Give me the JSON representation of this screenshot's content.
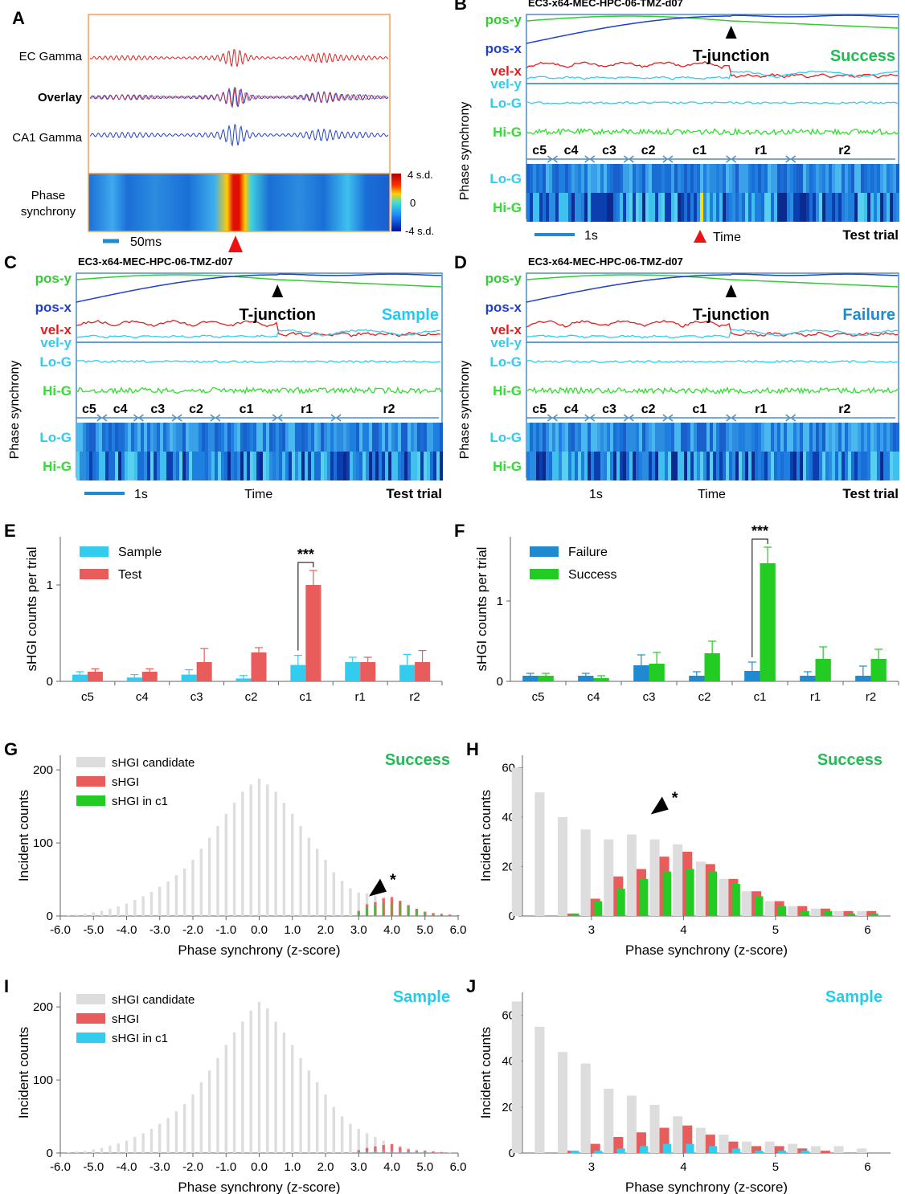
{
  "colors": {
    "pos_y": "#33cc33",
    "pos_x": "#1f3fd0",
    "vel_x": "#e02020",
    "vel_y": "#33ccee",
    "lo_g": "#33ccee",
    "hi_g": "#33dd33",
    "sample": "#33ccee",
    "test": "#e85c5c",
    "failure": "#1f8ad0",
    "success": "#22cc22",
    "candidate": "#dddddd",
    "shgi": "#e85c5c",
    "success_title": "#22bb55",
    "sample_title": "#22ccee",
    "frame": "#4d8fc0",
    "frame_a": "#f0a050"
  },
  "panelA": {
    "label": "A",
    "traces": [
      "EC Gamma",
      "Overlay",
      "CA1 Gamma"
    ],
    "phase_label_1": "Phase",
    "phase_label_2": "synchrony",
    "colorbar": [
      "4 s.d.",
      "0",
      "-4 s.d."
    ],
    "scalebar": "50ms"
  },
  "panelB": {
    "label": "B",
    "title": "EC3-x64-MEC-HPC-06-TMZ-d07",
    "rows": [
      "pos-y",
      "pos-x",
      "vel-x",
      "vel-y"
    ],
    "junction": "T-junction",
    "outcome": "Success",
    "ylabel": "Phase synchrony",
    "lo": "Lo-G",
    "hi": "Hi-G",
    "segments": [
      "c5",
      "c4",
      "c3",
      "c2",
      "c1",
      "r1",
      "r2"
    ],
    "scalebar": "1s",
    "time": "Time",
    "trial": "Test trial"
  },
  "panelC": {
    "label": "C",
    "title": "EC3-x64-MEC-HPC-06-TMZ-d07",
    "rows": [
      "pos-y",
      "pos-x",
      "vel-x",
      "vel-y"
    ],
    "junction": "T-junction",
    "outcome": "Sample",
    "ylabel": "Phase synchrony",
    "lo": "Lo-G",
    "hi": "Hi-G",
    "segments": [
      "c5",
      "c4",
      "c3",
      "c2",
      "c1",
      "r1",
      "r2"
    ],
    "scalebar": "1s",
    "time": "Time",
    "trial": "Test trial"
  },
  "panelD": {
    "label": "D",
    "title": "EC3-x64-MEC-HPC-06-TMZ-d07",
    "rows": [
      "pos-y",
      "pos-x",
      "vel-x",
      "vel-y"
    ],
    "junction": "T-junction",
    "outcome": "Failure",
    "ylabel": "Phase synchrony",
    "lo": "Lo-G",
    "hi": "Hi-G",
    "segments": [
      "c5",
      "c4",
      "c3",
      "c2",
      "c1",
      "r1",
      "r2"
    ],
    "scalebar": "1s",
    "time": "Time",
    "trial": "Test trial"
  },
  "chart_data": [
    {
      "id": "E",
      "type": "bar",
      "label": "E",
      "ylabel": "sHGI counts per trial",
      "categories": [
        "c5",
        "c4",
        "c3",
        "c2",
        "c1",
        "r1",
        "r2"
      ],
      "ylim": [
        0,
        1.5
      ],
      "yticks": [
        0,
        1
      ],
      "legend_position": "top-left",
      "significance": {
        "category": "c1",
        "text": "***"
      },
      "series": [
        {
          "name": "Sample",
          "values": [
            0.07,
            0.04,
            0.07,
            0.03,
            0.17,
            0.2,
            0.17
          ],
          "errors": [
            0.03,
            0.03,
            0.05,
            0.03,
            0.1,
            0.05,
            0.11
          ]
        },
        {
          "name": "Test",
          "values": [
            0.1,
            0.1,
            0.2,
            0.3,
            1.0,
            0.2,
            0.2
          ],
          "errors": [
            0.03,
            0.03,
            0.14,
            0.05,
            0.15,
            0.05,
            0.12
          ]
        }
      ]
    },
    {
      "id": "F",
      "type": "bar",
      "label": "F",
      "ylabel": "sHGI counts per trial",
      "categories": [
        "c5",
        "c4",
        "c3",
        "c2",
        "c1",
        "r1",
        "r2"
      ],
      "ylim": [
        0,
        1.8
      ],
      "yticks": [
        0,
        1
      ],
      "legend_position": "top-left",
      "significance": {
        "category": "c1",
        "text": "***"
      },
      "series": [
        {
          "name": "Failure",
          "values": [
            0.07,
            0.07,
            0.2,
            0.07,
            0.13,
            0.07,
            0.07
          ],
          "errors": [
            0.03,
            0.03,
            0.13,
            0.05,
            0.11,
            0.05,
            0.12
          ]
        },
        {
          "name": "Success",
          "values": [
            0.07,
            0.04,
            0.22,
            0.35,
            1.47,
            0.28,
            0.28
          ],
          "errors": [
            0.03,
            0.03,
            0.14,
            0.15,
            0.2,
            0.15,
            0.12
          ]
        }
      ]
    },
    {
      "id": "G",
      "type": "bar",
      "label": "G",
      "outcome": "Success",
      "xlabel": "Phase synchrony (z-score)",
      "ylabel": "Incident counts",
      "xlim": [
        -6.0,
        6.0
      ],
      "ylim": [
        0,
        220
      ],
      "yticks": [
        0,
        100,
        200
      ],
      "xticks": [
        "-6.0",
        "-5.0",
        "-4.0",
        "-3.0",
        "-2.0",
        "-1.0",
        "0.0",
        "1.0",
        "2.0",
        "3.0",
        "4.0",
        "5.0",
        "6.0"
      ],
      "annotation": "*",
      "bins": [
        -6,
        -5.75,
        -5.5,
        -5.25,
        -5,
        -4.75,
        -4.5,
        -4.25,
        -4,
        -3.75,
        -3.5,
        -3.25,
        -3,
        -2.75,
        -2.5,
        -2.25,
        -2,
        -1.75,
        -1.5,
        -1.25,
        -1,
        -0.75,
        -0.5,
        -0.25,
        0,
        0.25,
        0.5,
        0.75,
        1,
        1.25,
        1.5,
        1.75,
        2,
        2.25,
        2.5,
        2.75,
        3,
        3.25,
        3.5,
        3.75,
        4,
        4.25,
        4.5,
        4.75,
        5,
        5.25,
        5.5,
        5.75,
        6
      ],
      "series": [
        {
          "name": "sHGI candidate",
          "values": [
            0,
            1,
            2,
            3,
            5,
            7,
            10,
            13,
            17,
            22,
            27,
            33,
            40,
            47,
            56,
            65,
            77,
            92,
            107,
            123,
            140,
            155,
            170,
            180,
            188,
            180,
            170,
            155,
            140,
            123,
            107,
            92,
            77,
            60,
            48,
            38,
            32,
            31,
            28,
            26,
            22,
            17,
            13,
            9,
            6,
            4,
            2,
            1,
            0
          ]
        },
        {
          "name": "sHGI",
          "values": [
            0,
            0,
            0,
            0,
            0,
            0,
            0,
            0,
            0,
            0,
            0,
            0,
            0,
            0,
            0,
            0,
            0,
            0,
            0,
            0,
            0,
            0,
            0,
            0,
            0,
            0,
            0,
            0,
            0,
            0,
            0,
            0,
            0,
            0,
            0,
            0,
            7,
            16,
            19,
            24,
            26,
            21,
            15,
            10,
            6,
            4,
            3,
            2,
            1
          ]
        },
        {
          "name": "sHGI in c1",
          "values": [
            0,
            0,
            0,
            0,
            0,
            0,
            0,
            0,
            0,
            0,
            0,
            0,
            0,
            0,
            0,
            0,
            0,
            0,
            0,
            0,
            0,
            0,
            0,
            0,
            0,
            0,
            0,
            0,
            0,
            0,
            0,
            0,
            0,
            0,
            0,
            0,
            6,
            11,
            15,
            18,
            19,
            18,
            13,
            8,
            4,
            2,
            2,
            1,
            1
          ]
        }
      ]
    },
    {
      "id": "H",
      "type": "bar",
      "label": "H",
      "outcome": "Success",
      "xlabel": "Phase synchrony (z-score)",
      "ylabel": "Incident counts",
      "xlim": [
        2.25,
        6.25
      ],
      "ylim": [
        0,
        65
      ],
      "yticks": [
        0,
        20,
        40,
        60
      ],
      "xticks": [
        3,
        4,
        5,
        6
      ],
      "annotation": "*",
      "bins": [
        2.25,
        2.5,
        2.75,
        3,
        3.25,
        3.5,
        3.75,
        4,
        4.25,
        4.5,
        4.75,
        5,
        5.25,
        5.5,
        5.75,
        6
      ],
      "series": [
        {
          "name": "sHGI candidate",
          "values": [
            60,
            50,
            40,
            35,
            31,
            33,
            31,
            29,
            22,
            15,
            10,
            6,
            4,
            3,
            2,
            2
          ]
        },
        {
          "name": "sHGI",
          "values": [
            0,
            0,
            1,
            7,
            16,
            19,
            24,
            26,
            21,
            15,
            10,
            6,
            4,
            3,
            2,
            2
          ]
        },
        {
          "name": "sHGI in c1",
          "values": [
            0,
            0,
            1,
            6,
            11,
            15,
            18,
            19,
            18,
            13,
            8,
            4,
            2,
            2,
            1,
            1
          ]
        }
      ]
    },
    {
      "id": "I",
      "type": "bar",
      "label": "I",
      "outcome": "Sample",
      "xlabel": "Phase synchrony (z-score)",
      "ylabel": "Incident counts",
      "xlim": [
        -6.0,
        6.0
      ],
      "ylim": [
        0,
        220
      ],
      "yticks": [
        0,
        100,
        200
      ],
      "xticks": [
        "-6.0",
        "-5.0",
        "-4.0",
        "-3.0",
        "-2.0",
        "-1.0",
        "0.0",
        "1.0",
        "2.0",
        "3.0",
        "4.0",
        "5.0",
        "6.0"
      ],
      "bins": [
        -6,
        -5.75,
        -5.5,
        -5.25,
        -5,
        -4.75,
        -4.5,
        -4.25,
        -4,
        -3.75,
        -3.5,
        -3.25,
        -3,
        -2.75,
        -2.5,
        -2.25,
        -2,
        -1.75,
        -1.5,
        -1.25,
        -1,
        -0.75,
        -0.5,
        -0.25,
        0,
        0.25,
        0.5,
        0.75,
        1,
        1.25,
        1.5,
        1.75,
        2,
        2.25,
        2.5,
        2.75,
        3,
        3.25,
        3.5,
        3.75,
        4,
        4.25,
        4.5,
        4.75,
        5,
        5.25,
        5.5,
        5.75,
        6
      ],
      "series": [
        {
          "name": "sHGI candidate",
          "values": [
            0,
            1,
            2,
            3,
            5,
            7,
            10,
            13,
            17,
            22,
            27,
            33,
            40,
            48,
            57,
            67,
            80,
            97,
            113,
            130,
            148,
            165,
            180,
            195,
            207,
            198,
            180,
            165,
            148,
            130,
            113,
            97,
            80,
            63,
            50,
            40,
            33,
            27,
            22,
            17,
            13,
            10,
            7,
            5,
            4,
            3,
            2,
            1,
            0
          ]
        },
        {
          "name": "sHGI",
          "values": [
            0,
            0,
            0,
            0,
            0,
            0,
            0,
            0,
            0,
            0,
            0,
            0,
            0,
            0,
            0,
            0,
            0,
            0,
            0,
            0,
            0,
            0,
            0,
            0,
            0,
            0,
            0,
            0,
            0,
            0,
            0,
            0,
            0,
            0,
            0,
            0,
            4,
            7,
            9,
            11,
            12,
            8,
            5,
            3,
            3,
            2,
            1,
            0,
            0
          ]
        },
        {
          "name": "sHGI in c1",
          "values": [
            0,
            0,
            0,
            0,
            0,
            0,
            0,
            0,
            0,
            0,
            0,
            0,
            0,
            0,
            0,
            0,
            0,
            0,
            0,
            0,
            0,
            0,
            0,
            0,
            0,
            0,
            0,
            0,
            0,
            0,
            0,
            0,
            0,
            0,
            0,
            0,
            1,
            2,
            3,
            4,
            4,
            3,
            2,
            1,
            1,
            0,
            0,
            0,
            0
          ]
        }
      ]
    },
    {
      "id": "J",
      "type": "bar",
      "label": "J",
      "outcome": "Sample",
      "xlabel": "Phase synchrony (z-score)",
      "ylabel": "Incident counts",
      "xlim": [
        2.25,
        6.25
      ],
      "ylim": [
        0,
        70
      ],
      "yticks": [
        0,
        20,
        40,
        60
      ],
      "xticks": [
        3,
        4,
        5,
        6
      ],
      "bins": [
        2.25,
        2.5,
        2.75,
        3,
        3.25,
        3.5,
        3.75,
        4,
        4.25,
        4.5,
        4.75,
        5,
        5.25,
        5.5,
        5.75,
        6
      ],
      "series": [
        {
          "name": "sHGI candidate",
          "values": [
            66,
            55,
            44,
            39,
            28,
            25,
            21,
            16,
            11,
            8,
            5,
            5,
            4,
            3,
            3,
            2
          ]
        },
        {
          "name": "sHGI",
          "values": [
            0,
            0,
            1,
            4,
            7,
            9,
            11,
            12,
            8,
            5,
            3,
            3,
            2,
            1,
            0,
            0
          ]
        },
        {
          "name": "sHGI in c1",
          "values": [
            0,
            0,
            1,
            1,
            2,
            3,
            4,
            4,
            3,
            2,
            1,
            1,
            1,
            0,
            0,
            0
          ]
        }
      ]
    }
  ]
}
